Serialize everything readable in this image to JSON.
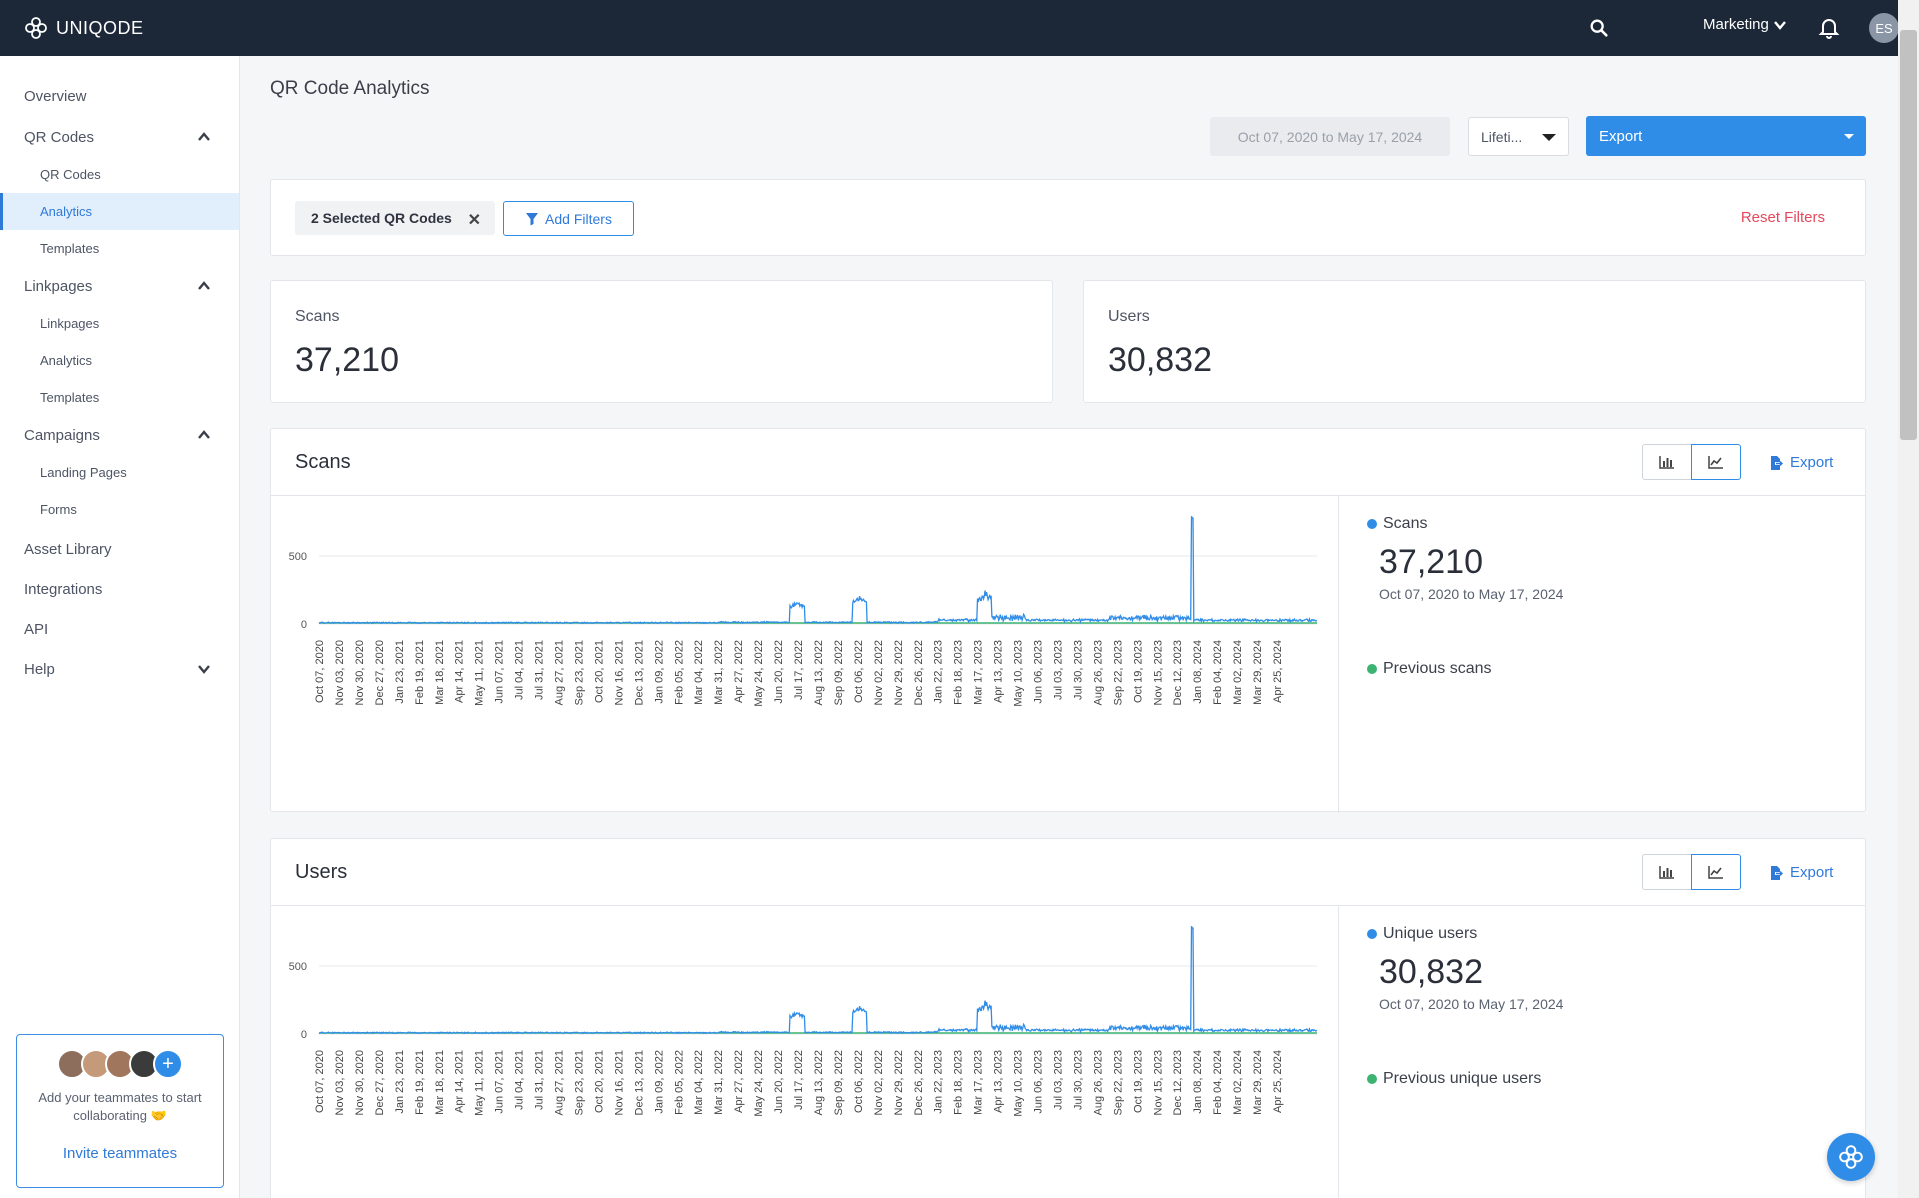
{
  "app": {
    "brand": "UNIQODE",
    "workspace": "Marketing",
    "avatar_initials": "ES"
  },
  "sidebar": {
    "items": [
      {
        "label": "Overview"
      },
      {
        "label": "QR Codes",
        "expanded": true,
        "children": [
          {
            "label": "QR Codes"
          },
          {
            "label": "Analytics",
            "active": true
          },
          {
            "label": "Templates"
          }
        ]
      },
      {
        "label": "Linkpages",
        "expanded": true,
        "children": [
          {
            "label": "Linkpages"
          },
          {
            "label": "Analytics"
          },
          {
            "label": "Templates"
          }
        ]
      },
      {
        "label": "Campaigns",
        "expanded": true,
        "children": [
          {
            "label": "Landing Pages"
          },
          {
            "label": "Forms"
          }
        ]
      },
      {
        "label": "Asset Library"
      },
      {
        "label": "Integrations"
      },
      {
        "label": "API"
      },
      {
        "label": "Help",
        "expanded": false
      }
    ],
    "invite": {
      "text": "Add your teammates to start collaborating 🤝",
      "link": "Invite teammates"
    }
  },
  "page": {
    "title": "QR Code Analytics",
    "date_range": "Oct 07, 2020 to May 17, 2024",
    "period": "Lifeti...",
    "export_label": "Export"
  },
  "filters": {
    "chip": "2 Selected QR Codes",
    "add_filters": "Add Filters",
    "reset_filters": "Reset Filters"
  },
  "stats": {
    "scans_label": "Scans",
    "scans_value": "37,210",
    "users_label": "Users",
    "users_value": "30,832"
  },
  "scans_panel": {
    "title": "Scans",
    "export": "Export",
    "legend_current": "Scans",
    "legend_value": "37,210",
    "legend_date": "Oct 07, 2020 to May 17, 2024",
    "legend_previous": "Previous scans"
  },
  "users_panel": {
    "title": "Users",
    "export": "Export",
    "legend_current": "Unique users",
    "legend_value": "30,832",
    "legend_date": "Oct 07, 2020 to May 17, 2024",
    "legend_previous": "Previous unique users"
  },
  "colors": {
    "current_series": "#2f8de8",
    "previous_series": "#3cb371",
    "accent": "#2f8de8",
    "danger": "#e4485c"
  },
  "chart_data": [
    {
      "type": "line",
      "name": "scans",
      "y_ticks": [
        0,
        500
      ],
      "ylim": [
        0,
        700
      ],
      "x_tick_labels": [
        "Oct 07, 2020",
        "Nov 03, 2020",
        "Nov 30, 2020",
        "Dec 27, 2020",
        "Jan 23, 2021",
        "Feb 19, 2021",
        "Mar 18, 2021",
        "Apr 14, 2021",
        "May 11, 2021",
        "Jun 07, 2021",
        "Jul 04, 2021",
        "Jul 31, 2021",
        "Aug 27, 2021",
        "Sep 23, 2021",
        "Oct 20, 2021",
        "Nov 16, 2021",
        "Dec 13, 2021",
        "Jan 09, 2022",
        "Feb 05, 2022",
        "Mar 04, 2022",
        "Mar 31, 2022",
        "Apr 27, 2022",
        "May 24, 2022",
        "Jun 20, 2022",
        "Jul 17, 2022",
        "Aug 13, 2022",
        "Sep 09, 2022",
        "Oct 06, 2022",
        "Nov 02, 2022",
        "Nov 29, 2022",
        "Dec 26, 2022",
        "Jan 22, 2023",
        "Feb 18, 2023",
        "Mar 17, 2023",
        "Apr 13, 2023",
        "May 10, 2023",
        "Jun 06, 2023",
        "Jul 03, 2023",
        "Jul 30, 2023",
        "Aug 26, 2023",
        "Sep 22, 2023",
        "Oct 19, 2023",
        "Nov 15, 2023",
        "Dec 12, 2023",
        "Jan 08, 2024",
        "Feb 04, 2024",
        "Mar 02, 2024",
        "Mar 29, 2024",
        "Apr 25, 2024"
      ],
      "series": [
        {
          "name": "Scans",
          "color": "#2f8de8",
          "peaks": [
            {
              "date": "Jun 20, 2022",
              "value": 160
            },
            {
              "date": "Sep 20, 2022",
              "value": 200
            },
            {
              "date": "Feb 18, 2023",
              "value": 210
            },
            {
              "date": "Nov 03, 2023",
              "value": 760
            }
          ]
        },
        {
          "name": "Previous scans",
          "color": "#3cb371"
        }
      ]
    },
    {
      "type": "line",
      "name": "users",
      "y_ticks": [
        0,
        500
      ],
      "ylim": [
        0,
        700
      ],
      "x_tick_labels": [
        "Oct 07, 2020",
        "Nov 03, 2020",
        "Nov 30, 2020",
        "Dec 27, 2020",
        "Jan 23, 2021",
        "Feb 19, 2021",
        "Mar 18, 2021",
        "Apr 14, 2021",
        "May 11, 2021",
        "Jun 07, 2021",
        "Jul 04, 2021",
        "Jul 31, 2021",
        "Aug 27, 2021",
        "Sep 23, 2021",
        "Oct 20, 2021",
        "Nov 16, 2021",
        "Dec 13, 2021",
        "Jan 09, 2022",
        "Feb 05, 2022",
        "Mar 04, 2022",
        "Mar 31, 2022",
        "Apr 27, 2022",
        "May 24, 2022",
        "Jun 20, 2022",
        "Jul 17, 2022",
        "Aug 13, 2022",
        "Sep 09, 2022",
        "Oct 06, 2022",
        "Nov 02, 2022",
        "Nov 29, 2022",
        "Dec 26, 2022",
        "Jan 22, 2023",
        "Feb 18, 2023",
        "Mar 17, 2023",
        "Apr 13, 2023",
        "May 10, 2023",
        "Jun 06, 2023",
        "Jul 03, 2023",
        "Jul 30, 2023",
        "Aug 26, 2023",
        "Sep 22, 2023",
        "Oct 19, 2023",
        "Nov 15, 2023",
        "Dec 12, 2023",
        "Jan 08, 2024",
        "Feb 04, 2024",
        "Mar 02, 2024",
        "Mar 29, 2024",
        "Apr 25, 2024"
      ],
      "series": [
        {
          "name": "Unique users",
          "color": "#2f8de8",
          "peaks": [
            {
              "date": "Jun 20, 2022",
              "value": 160
            },
            {
              "date": "Sep 20, 2022",
              "value": 200
            },
            {
              "date": "Feb 18, 2023",
              "value": 210
            },
            {
              "date": "Nov 03, 2023",
              "value": 760
            }
          ]
        },
        {
          "name": "Previous unique users",
          "color": "#3cb371"
        }
      ]
    }
  ]
}
